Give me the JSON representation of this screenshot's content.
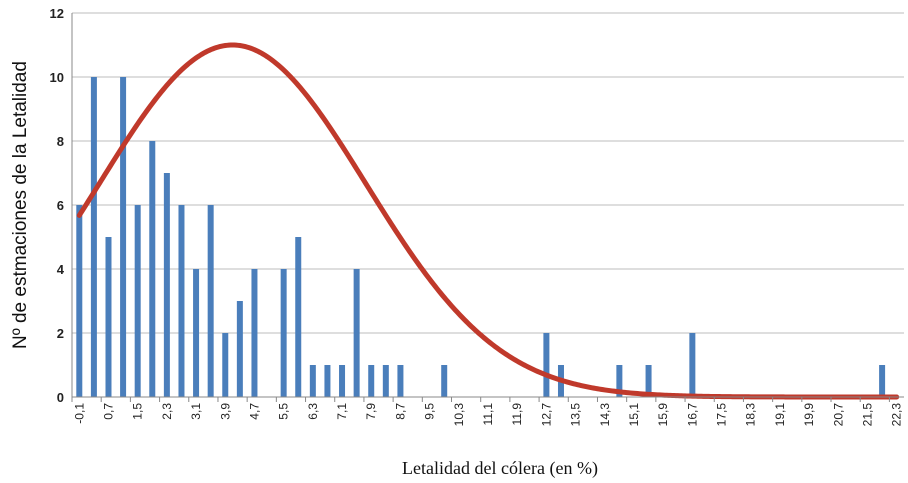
{
  "chart_data": {
    "type": "bar",
    "title": "",
    "xlabel": "Letalidad del cólera (en %)",
    "ylabel": "Nº de estmaciones de la Letalidad",
    "ylim": [
      0,
      12
    ],
    "yticks": [
      0,
      2,
      4,
      6,
      8,
      10,
      12
    ],
    "grid": "horizontal",
    "bar_color": "#4a7ebb",
    "curve_color": "#c0392b",
    "x_tick_labels": [
      "-0,1",
      "0,7",
      "1,5",
      "2,3",
      "3,1",
      "3,9",
      "4,7",
      "5,5",
      "6,3",
      "7,1",
      "7,9",
      "8,7",
      "9,5",
      "10,3",
      "11,1",
      "11,9",
      "12,7",
      "13,5",
      "14,3",
      "15,1",
      "15,9",
      "16,7",
      "17,5",
      "18,3",
      "19,1",
      "19,9",
      "20,7",
      "21,5",
      "22,3"
    ],
    "bars": [
      {
        "x": -0.1,
        "value": 6
      },
      {
        "x": 0.3,
        "value": 10
      },
      {
        "x": 0.7,
        "value": 5
      },
      {
        "x": 1.1,
        "value": 10
      },
      {
        "x": 1.5,
        "value": 6
      },
      {
        "x": 1.9,
        "value": 8
      },
      {
        "x": 2.3,
        "value": 7
      },
      {
        "x": 2.7,
        "value": 6
      },
      {
        "x": 3.1,
        "value": 4
      },
      {
        "x": 3.5,
        "value": 6
      },
      {
        "x": 3.9,
        "value": 2
      },
      {
        "x": 4.3,
        "value": 3
      },
      {
        "x": 4.7,
        "value": 4
      },
      {
        "x": 5.5,
        "value": 4
      },
      {
        "x": 5.9,
        "value": 5
      },
      {
        "x": 6.3,
        "value": 1
      },
      {
        "x": 6.7,
        "value": 1
      },
      {
        "x": 7.1,
        "value": 1
      },
      {
        "x": 7.5,
        "value": 4
      },
      {
        "x": 7.9,
        "value": 1
      },
      {
        "x": 8.3,
        "value": 1
      },
      {
        "x": 8.7,
        "value": 1
      },
      {
        "x": 9.9,
        "value": 1
      },
      {
        "x": 12.7,
        "value": 2
      },
      {
        "x": 13.1,
        "value": 1
      },
      {
        "x": 14.7,
        "value": 1
      },
      {
        "x": 15.5,
        "value": 1
      },
      {
        "x": 16.7,
        "value": 2
      },
      {
        "x": 21.9,
        "value": 1
      }
    ],
    "curve": {
      "type": "normal",
      "mean": 4.1,
      "sd": 3.65,
      "peak": 11,
      "x_range": [
        -0.1,
        22.3
      ]
    }
  }
}
